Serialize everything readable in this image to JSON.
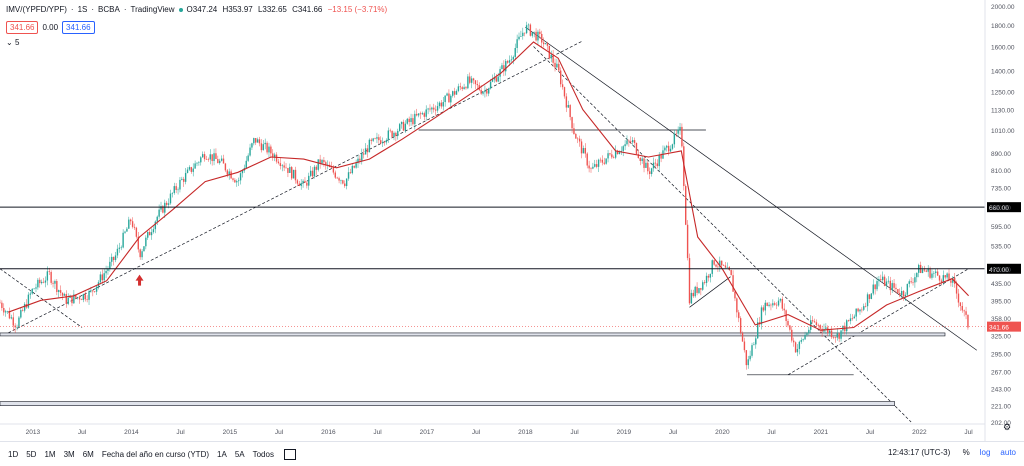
{
  "header": {
    "symbol": "IMV/(YPFD/YPF)",
    "interval": "1S",
    "exchange": "BCBA",
    "source": "TradingView",
    "ohlc": {
      "o": "O347.24",
      "h": "H353.97",
      "l": "L332.65",
      "c": "C341.66",
      "chg": "−13.15 (−3.71%)"
    },
    "bid": "341.66",
    "spread": "0.00",
    "ask": "341.66",
    "indicator_length": "5"
  },
  "colors": {
    "up": "#26a69a",
    "down": "#ef5350",
    "ma": "#c62828",
    "line": "#131722",
    "price_label": "#ef5350",
    "level_label": "#000000",
    "arrow": "#d32f2f"
  },
  "chart_data": {
    "type": "line",
    "scale": "log",
    "grid": false,
    "ylim": [
      202,
      2000
    ],
    "xlim": [
      "2012-09",
      "2022-09"
    ],
    "y_ticks": [
      "2000.00",
      "1800.00",
      "1600.00",
      "1400.00",
      "1250.00",
      "1130.00",
      "1010.00",
      "890.00",
      "810.00",
      "735.00",
      "660.00",
      "595.00",
      "535.00",
      "470.00",
      "435.00",
      "395.00",
      "358.00",
      "325.00",
      "295.00",
      "267.00",
      "243.00",
      "221.00",
      "202.00"
    ],
    "x_ticks": [
      "2013",
      "Jul",
      "2014",
      "Jul",
      "2015",
      "Jul",
      "2016",
      "Jul",
      "2017",
      "Jul",
      "2018",
      "Jul",
      "2019",
      "Jul",
      "2020",
      "Jul",
      "2021",
      "Jul",
      "2022",
      "Jul"
    ],
    "highlighted_levels": [
      "660.00",
      "470.00"
    ],
    "last_price_label": "341.66",
    "series": [
      {
        "values": [
          [
            "2012-09",
            390
          ],
          [
            "2012-11",
            345
          ],
          [
            "2013-01",
            420
          ],
          [
            "2013-03",
            455
          ],
          [
            "2013-05",
            395
          ],
          [
            "2013-08",
            410
          ],
          [
            "2013-11",
            500
          ],
          [
            "2014-01",
            620
          ],
          [
            "2014-02",
            510
          ],
          [
            "2014-04",
            620
          ],
          [
            "2014-07",
            760
          ],
          [
            "2014-10",
            890
          ],
          [
            "2014-12",
            840
          ],
          [
            "2015-02",
            760
          ],
          [
            "2015-04",
            960
          ],
          [
            "2015-07",
            860
          ],
          [
            "2015-10",
            740
          ],
          [
            "2015-12",
            850
          ],
          [
            "2016-03",
            760
          ],
          [
            "2016-06",
            930
          ],
          [
            "2016-09",
            1000
          ],
          [
            "2016-12",
            1090
          ],
          [
            "2017-03",
            1180
          ],
          [
            "2017-06",
            1320
          ],
          [
            "2017-08",
            1250
          ],
          [
            "2017-11",
            1480
          ],
          [
            "2018-01",
            1780
          ],
          [
            "2018-03",
            1660
          ],
          [
            "2018-05",
            1400
          ],
          [
            "2018-07",
            990
          ],
          [
            "2018-09",
            810
          ],
          [
            "2018-12",
            900
          ],
          [
            "2019-02",
            950
          ],
          [
            "2019-04",
            800
          ],
          [
            "2019-06",
            900
          ],
          [
            "2019-08",
            1010
          ],
          [
            "2019-09",
            400
          ],
          [
            "2019-11",
            445
          ],
          [
            "2019-12",
            490
          ],
          [
            "2020-02",
            455
          ],
          [
            "2020-04",
            275
          ],
          [
            "2020-06",
            385
          ],
          [
            "2020-08",
            395
          ],
          [
            "2020-10",
            300
          ],
          [
            "2020-12",
            350
          ],
          [
            "2021-03",
            325
          ],
          [
            "2021-06",
            380
          ],
          [
            "2021-08",
            445
          ],
          [
            "2021-11",
            410
          ],
          [
            "2022-01",
            470
          ],
          [
            "2022-03",
            455
          ],
          [
            "2022-05",
            440
          ],
          [
            "2022-07",
            341.66
          ]
        ]
      },
      {
        "values": [
          [
            "2012-10",
            370
          ],
          [
            "2013-02",
            395
          ],
          [
            "2013-06",
            405
          ],
          [
            "2013-10",
            440
          ],
          [
            "2014-02",
            560
          ],
          [
            "2014-06",
            650
          ],
          [
            "2014-10",
            760
          ],
          [
            "2015-02",
            800
          ],
          [
            "2015-06",
            870
          ],
          [
            "2015-10",
            860
          ],
          [
            "2016-02",
            820
          ],
          [
            "2016-06",
            860
          ],
          [
            "2016-10",
            960
          ],
          [
            "2017-02",
            1080
          ],
          [
            "2017-06",
            1220
          ],
          [
            "2017-10",
            1380
          ],
          [
            "2018-02",
            1640
          ],
          [
            "2018-05",
            1500
          ],
          [
            "2018-08",
            1130
          ],
          [
            "2018-12",
            900
          ],
          [
            "2019-04",
            870
          ],
          [
            "2019-08",
            900
          ],
          [
            "2019-10",
            560
          ],
          [
            "2020-01",
            470
          ],
          [
            "2020-05",
            345
          ],
          [
            "2020-09",
            365
          ],
          [
            "2021-01",
            335
          ],
          [
            "2021-05",
            340
          ],
          [
            "2021-09",
            385
          ],
          [
            "2022-01",
            415
          ],
          [
            "2022-05",
            445
          ],
          [
            "2022-07",
            405
          ]
        ]
      }
    ]
  },
  "bottom_bar": {
    "timeframes": [
      "1D",
      "5D",
      "1M",
      "3M",
      "6M",
      "Fecha del año en curso (YTD)",
      "1A",
      "5A",
      "Todos"
    ],
    "clock": "12:43:17 (UTC-3)",
    "percent": "%",
    "log": "log",
    "auto": "auto"
  }
}
